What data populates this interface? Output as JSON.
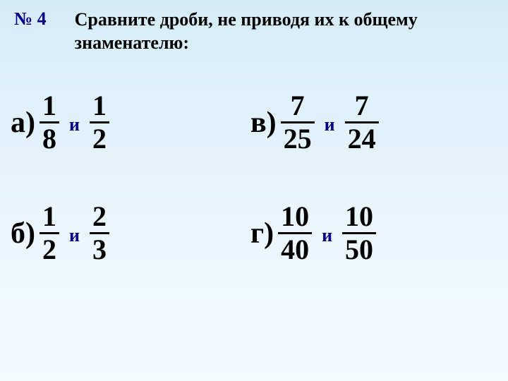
{
  "header": {
    "problem_number": "№ 4",
    "title_line1": "Сравните дроби, не приводя их к общему",
    "title_line2": "знаменателю:"
  },
  "problems": {
    "a": {
      "letter": "а)",
      "frac1_num": "1",
      "frac1_den": "8",
      "connector": "и",
      "frac2_num": "1",
      "frac2_den": "2"
    },
    "b": {
      "letter": "б)",
      "frac1_num": "1",
      "frac1_den": "2",
      "connector": "и",
      "frac2_num": "2",
      "frac2_den": "3"
    },
    "c": {
      "letter": "в)",
      "frac1_num": "7",
      "frac1_den": "25",
      "connector": "и",
      "frac2_num": "7",
      "frac2_den": "24"
    },
    "d": {
      "letter": "г)",
      "frac1_num": "10",
      "frac1_den": "40",
      "connector": "и",
      "frac2_num": "10",
      "frac2_den": "50"
    }
  },
  "colors": {
    "accent": "#000080",
    "text": "#000000",
    "bg_top": "#d4ecf7",
    "bg_bottom": "#f5fbfe"
  }
}
